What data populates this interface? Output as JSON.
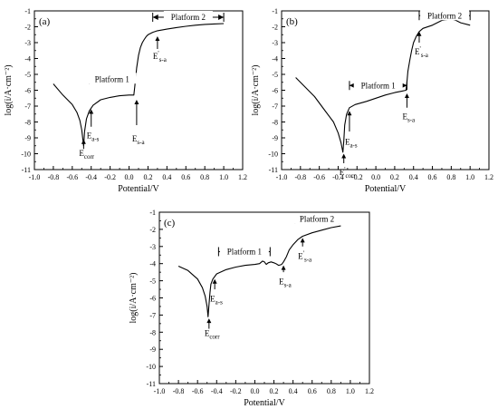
{
  "chart_data": [
    {
      "type": "line",
      "panel_label": "(a)",
      "xlabel": "Potential/V",
      "ylabel": "log(i/A·cm⁻²)",
      "xlim": [
        -1.0,
        1.2
      ],
      "ylim": [
        -11,
        -1
      ],
      "xticks": [
        "-1.0",
        "-0.8",
        "-0.6",
        "-0.4",
        "-0.2",
        "0.0",
        "0.2",
        "0.4",
        "0.6",
        "0.8",
        "1.0",
        "1.2"
      ],
      "yticks": [
        "-1",
        "-2",
        "-3",
        "-4",
        "-5",
        "-6",
        "-7",
        "-8",
        "-9",
        "-10",
        "-11"
      ],
      "grid": false,
      "series": [
        {
          "x": [
            -0.8,
            -0.7,
            -0.6,
            -0.55,
            -0.52,
            -0.5,
            -0.49,
            -0.48,
            -0.47,
            -0.45,
            -0.42,
            -0.38,
            -0.3,
            -0.2,
            -0.1,
            0.0,
            0.05,
            0.06,
            0.07,
            0.08,
            0.1,
            0.12,
            0.14,
            0.16,
            0.18,
            0.2,
            0.25,
            0.3,
            0.4,
            0.5,
            0.6,
            0.7,
            0.8,
            0.9,
            1.0
          ],
          "y": [
            -5.6,
            -6.3,
            -6.9,
            -7.4,
            -7.9,
            -8.5,
            -9.0,
            -9.5,
            -8.6,
            -7.8,
            -7.3,
            -6.95,
            -6.6,
            -6.45,
            -6.35,
            -6.3,
            -6.3,
            -5.8,
            -5.2,
            -4.6,
            -3.8,
            -3.3,
            -3.0,
            -2.8,
            -2.62,
            -2.5,
            -2.35,
            -2.25,
            -2.15,
            -2.05,
            -1.97,
            -1.9,
            -1.85,
            -1.82,
            -1.8
          ]
        }
      ],
      "annotations": [
        {
          "text": "E",
          "sub": "corr",
          "sup": "",
          "x": -0.48,
          "y": -9.9,
          "arrow_from_y": -9.7,
          "arrow_to_y": -9.1
        },
        {
          "text": "E",
          "sub": "a-s",
          "sup": "",
          "x": -0.4,
          "y": -8.8,
          "arrow_from_y": -8.3,
          "arrow_to_y": -7.2
        },
        {
          "text": "E",
          "sub": "s-a",
          "sup": "",
          "x": 0.08,
          "y": -9.0,
          "arrow_from_y": -8.2,
          "arrow_to_y": -6.6
        },
        {
          "text": "E",
          "sub": "s-a",
          "sup": "'",
          "x": 0.3,
          "y": -3.8,
          "arrow_from_y": -3.4,
          "arrow_to_y": -2.6
        }
      ],
      "platforms": [
        {
          "label": "Platform 1",
          "x_start": -0.42,
          "x_end": 0.06,
          "y": -5.3
        },
        {
          "label": "Platform 2",
          "x_start": 0.25,
          "x_end": 1.0,
          "y": -1.4
        }
      ]
    },
    {
      "type": "line",
      "panel_label": "(b)",
      "xlabel": "Potential/V",
      "ylabel": "log(i/A·cm⁻²)",
      "xlim": [
        -1.0,
        1.2
      ],
      "ylim": [
        -11,
        -1
      ],
      "xticks": [
        "-1.0",
        "-0.8",
        "-0.6",
        "-0.4",
        "-0.2",
        "0.0",
        "0.2",
        "0.4",
        "0.6",
        "0.8",
        "1.0",
        "1.2"
      ],
      "yticks": [
        "-1",
        "-2",
        "-3",
        "-4",
        "-5",
        "-6",
        "-7",
        "-8",
        "-9",
        "-10",
        "-11"
      ],
      "grid": false,
      "series": [
        {
          "x": [
            -0.85,
            -0.75,
            -0.65,
            -0.55,
            -0.45,
            -0.4,
            -0.37,
            -0.35,
            -0.34,
            -0.33,
            -0.31,
            -0.28,
            -0.22,
            -0.1,
            0.0,
            0.1,
            0.2,
            0.28,
            0.32,
            0.33,
            0.34,
            0.36,
            0.38,
            0.4,
            0.43,
            0.46,
            0.5,
            0.6,
            0.7,
            0.8,
            0.85,
            0.9,
            1.0
          ],
          "y": [
            -5.2,
            -5.8,
            -6.4,
            -7.2,
            -8.0,
            -8.7,
            -9.3,
            -9.9,
            -9.2,
            -8.2,
            -7.5,
            -7.1,
            -6.9,
            -6.7,
            -6.5,
            -6.3,
            -6.15,
            -6.05,
            -6.0,
            -5.5,
            -4.8,
            -4.1,
            -3.5,
            -3.0,
            -2.6,
            -2.3,
            -2.1,
            -1.9,
            -1.6,
            -1.5,
            -1.6,
            -1.75,
            -1.9
          ]
        }
      ],
      "annotations": [
        {
          "text": "E",
          "sub": "corr",
          "sup": "'",
          "x": -0.34,
          "y": -11.1,
          "arrow_from_y": -10.6,
          "arrow_to_y": -10.0
        },
        {
          "text": "E",
          "sub": "a-s",
          "sup": "",
          "x": -0.28,
          "y": -9.2,
          "arrow_from_y": -8.6,
          "arrow_to_y": -7.3
        },
        {
          "text": "E",
          "sub": "s-a",
          "sup": "",
          "x": 0.33,
          "y": -7.6,
          "arrow_from_y": -7.1,
          "arrow_to_y": -6.2
        },
        {
          "text": "E",
          "sub": "s-a",
          "sup": "'",
          "x": 0.46,
          "y": -3.5,
          "arrow_from_y": -3.0,
          "arrow_to_y": -2.3
        }
      ],
      "platforms": [
        {
          "label": "Platform 1",
          "x_start": -0.28,
          "x_end": 0.33,
          "y": -5.7
        },
        {
          "label": "Platform 2",
          "x_start": 0.46,
          "x_end": 1.0,
          "y": -1.3
        }
      ]
    },
    {
      "type": "line",
      "panel_label": "(c)",
      "xlabel": "Potential/V",
      "ylabel": "log(i/A·cm⁻²)",
      "xlim": [
        -1.0,
        1.2
      ],
      "ylim": [
        -11,
        -1
      ],
      "xticks": [
        "-1.0",
        "-0.8",
        "-0.6",
        "-0.4",
        "-0.2",
        "0.0",
        "0.2",
        "0.4",
        "0.6",
        "0.8",
        "1.0",
        "1.2"
      ],
      "yticks": [
        "-1",
        "-2",
        "-3",
        "-4",
        "-5",
        "-6",
        "-7",
        "-8",
        "-9",
        "-10",
        "-11"
      ],
      "grid": false,
      "series": [
        {
          "x": [
            -0.8,
            -0.7,
            -0.6,
            -0.55,
            -0.52,
            -0.5,
            -0.49,
            -0.48,
            -0.47,
            -0.46,
            -0.44,
            -0.4,
            -0.3,
            -0.2,
            -0.1,
            0.0,
            0.05,
            0.08,
            0.1,
            0.12,
            0.14,
            0.17,
            0.2,
            0.22,
            0.25,
            0.28,
            0.3,
            0.33,
            0.36,
            0.4,
            0.45,
            0.5,
            0.6,
            0.7,
            0.8,
            0.9
          ],
          "y": [
            -4.15,
            -4.4,
            -4.9,
            -5.4,
            -5.9,
            -6.5,
            -7.1,
            -6.4,
            -5.7,
            -5.2,
            -4.9,
            -4.6,
            -4.35,
            -4.2,
            -4.1,
            -4.05,
            -4.0,
            -3.85,
            -3.9,
            -4.05,
            -3.95,
            -3.9,
            -3.95,
            -4.0,
            -4.1,
            -4.05,
            -3.9,
            -3.6,
            -3.2,
            -2.9,
            -2.6,
            -2.4,
            -2.2,
            -2.05,
            -1.9,
            -1.8
          ]
        }
      ],
      "annotations": [
        {
          "text": "E",
          "sub": "corr",
          "sup": "",
          "x": -0.48,
          "y": -8.0,
          "arrow_from_y": -7.8,
          "arrow_to_y": -7.2
        },
        {
          "text": "E",
          "sub": "a-s",
          "sup": "",
          "x": -0.42,
          "y": -6.0,
          "arrow_from_y": -5.5,
          "arrow_to_y": -4.9
        },
        {
          "text": "E",
          "sub": "s-a",
          "sup": "",
          "x": 0.3,
          "y": -5.0,
          "arrow_from_y": -4.5,
          "arrow_to_y": -4.1
        },
        {
          "text": "E",
          "sub": "s-a",
          "sup": "'",
          "x": 0.5,
          "y": -3.5,
          "arrow_from_y": -3.0,
          "arrow_to_y": -2.5
        }
      ],
      "platforms": [
        {
          "label": "Platform 1",
          "x_start": -0.38,
          "x_end": 0.16,
          "y": -3.3
        },
        {
          "label": "Platform 2",
          "x_start": 0.42,
          "x_end": 0.88,
          "y": -1.4
        }
      ]
    }
  ]
}
